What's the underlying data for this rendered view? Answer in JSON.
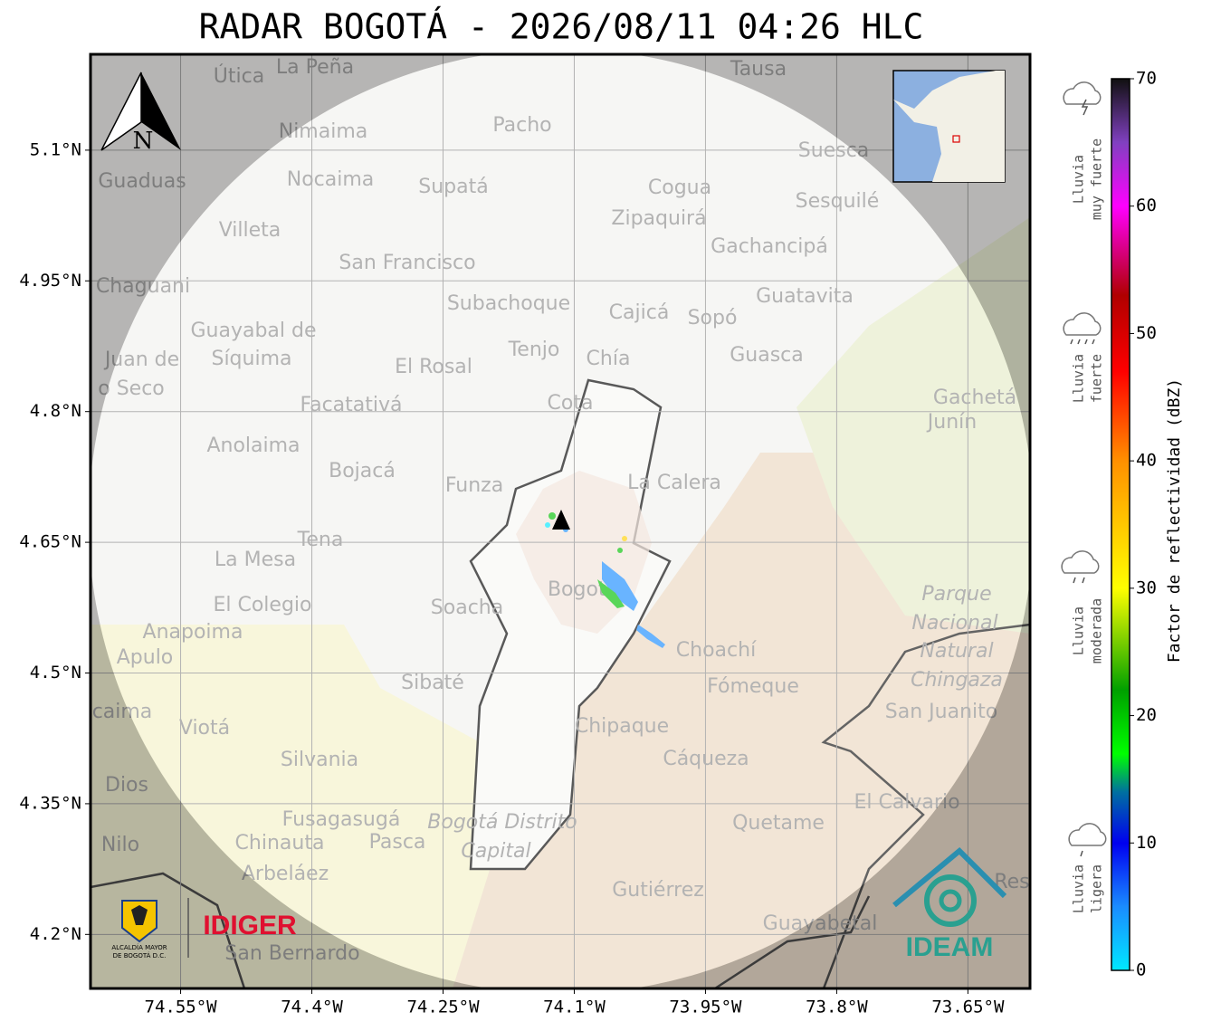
{
  "title": "RADAR BOGOTÁ - 2026/08/11 04:26 HLC",
  "map": {
    "xlim": [
      -74.653,
      -73.579
    ],
    "ylim": [
      4.138,
      5.21
    ],
    "lon_ticks": [
      {
        "value": -74.55,
        "label": "74.55°W"
      },
      {
        "value": -74.4,
        "label": "74.4°W"
      },
      {
        "value": -74.25,
        "label": "74.25°W"
      },
      {
        "value": -74.1,
        "label": "74.1°W"
      },
      {
        "value": -73.95,
        "label": "73.95°W"
      },
      {
        "value": -73.8,
        "label": "73.8°W"
      },
      {
        "value": -73.65,
        "label": "73.65°W"
      }
    ],
    "lat_ticks": [
      {
        "value": 5.1,
        "label": "5.1°N"
      },
      {
        "value": 4.95,
        "label": "4.95°N"
      },
      {
        "value": 4.8,
        "label": "4.8°N"
      },
      {
        "value": 4.65,
        "label": "4.65°N"
      },
      {
        "value": 4.5,
        "label": "4.5°N"
      },
      {
        "value": 4.35,
        "label": "4.35°N"
      },
      {
        "value": 4.2,
        "label": "4.2°N"
      }
    ],
    "grid": true,
    "north_label": "N",
    "places": [
      "La Peña",
      "Útica",
      "Tausa",
      "Pacho",
      "Nimaima",
      "Guaduas",
      "Nocaima",
      "Supatá",
      "Cogua",
      "Suesca",
      "Sesquilé",
      "Villeta",
      "Zipaquirá",
      "Gachancipá",
      "San Francisco",
      "Chaguani",
      "Subachoque",
      "Cajicá",
      "Sopó",
      "Guatavita",
      "Guayabal de",
      "Síquima",
      "Juan de",
      "o Seco",
      "Tenjo",
      "Chía",
      "El Rosal",
      "Guasca",
      "Facatativá",
      "Cota",
      "Gachetá",
      "Junín",
      "Anolaima",
      "Bojacá",
      "Funza",
      "La Calera",
      "Tena",
      "La Mesa",
      "El Colegio",
      "Soacha",
      "Bogotá",
      "Parque",
      "Nacional",
      "Natural",
      "Chingaza",
      "Anapoima",
      "Apulo",
      "Choachí",
      "Sibaté",
      "Fómeque",
      "San Juanito",
      "caima",
      "Viotá",
      "Chipaque",
      "Silvania",
      "Cáqueza",
      "Dios",
      "El Calvario",
      "Fusagasugá",
      "Bogotá Distrito",
      "Capital",
      "Quetame",
      "Nilo",
      "Chinauta",
      "Pasca",
      "Arbeláez",
      "Gutiérrez",
      "Guayabetal",
      "San Bernardo",
      "Res"
    ]
  },
  "logos": {
    "alcaldia": [
      "ALCALDÍA MAYOR",
      "DE BOGOTÁ D.C."
    ],
    "idiger": "IDIGER",
    "ideam": "IDEAM"
  },
  "colorbar": {
    "label": "Factor de reflectividad (dBZ)",
    "lim": [
      0,
      70
    ],
    "ticks": [
      0,
      10,
      20,
      30,
      40,
      50,
      60,
      70
    ],
    "colormap": [
      {
        "value": 0,
        "color": "#00e8ff"
      },
      {
        "value": 5,
        "color": "#1a8cff"
      },
      {
        "value": 10,
        "color": "#0000f0"
      },
      {
        "value": 14,
        "color": "#0070a0"
      },
      {
        "value": 17,
        "color": "#00ff00"
      },
      {
        "value": 22,
        "color": "#00a000"
      },
      {
        "value": 30,
        "color": "#ffff00"
      },
      {
        "value": 40,
        "color": "#ff9000"
      },
      {
        "value": 47,
        "color": "#ff0000"
      },
      {
        "value": 53,
        "color": "#b00000"
      },
      {
        "value": 60,
        "color": "#ff00ff"
      },
      {
        "value": 65,
        "color": "#8040c0"
      },
      {
        "value": 70,
        "color": "#101010"
      }
    ],
    "rain_levels": [
      [
        "Lluvia",
        "muy fuerte"
      ],
      [
        "Lluvia",
        "fuerte"
      ],
      [
        "Lluvia",
        "moderada"
      ],
      [
        "Lluvia",
        "ligera"
      ]
    ]
  }
}
